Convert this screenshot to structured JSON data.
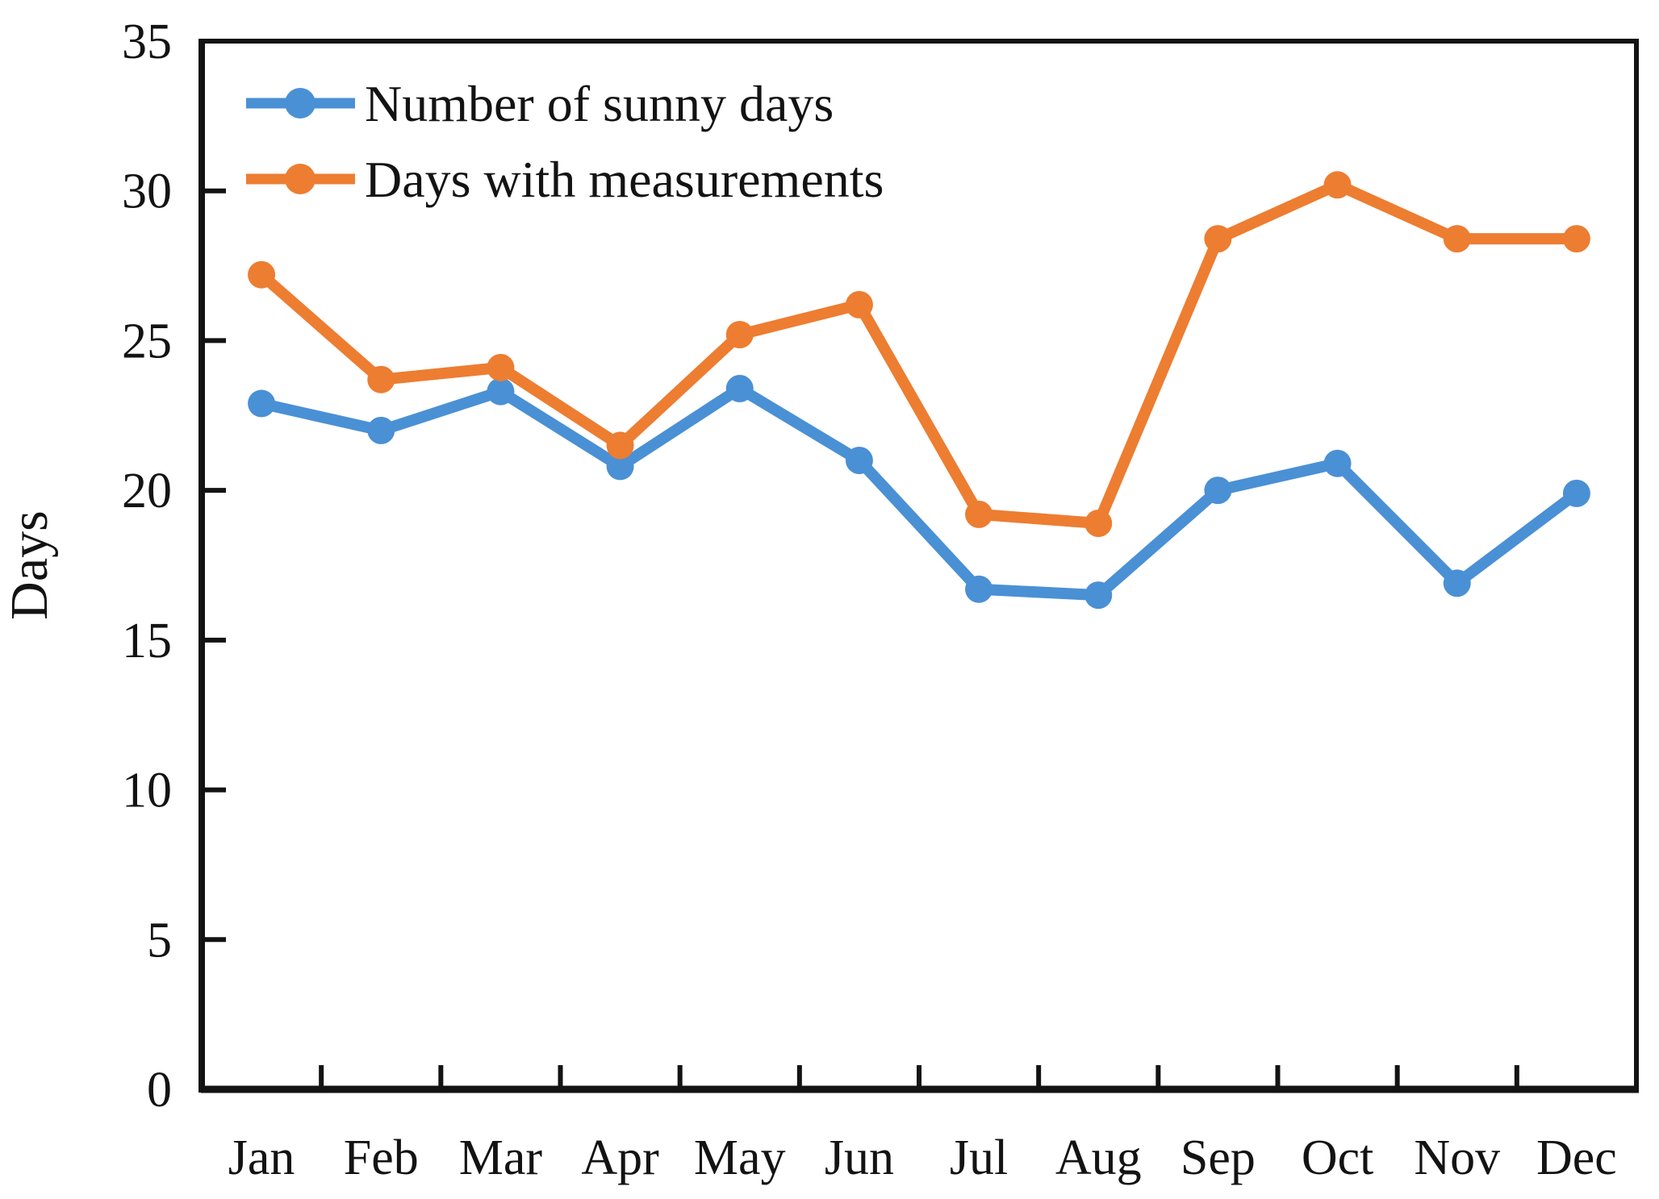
{
  "figure": {
    "background": "#ffffff",
    "axis_color": "#131313"
  },
  "chart_data": {
    "type": "line",
    "title": "",
    "xlabel": "",
    "ylabel": "Days",
    "categories": [
      "Jan",
      "Feb",
      "Mar",
      "Apr",
      "May",
      "Jun",
      "Jul",
      "Aug",
      "Sep",
      "Oct",
      "Nov",
      "Dec"
    ],
    "series": [
      {
        "name": "Number of sunny days",
        "color": "#4A90D5",
        "marker": "circle",
        "values": [
          22.9,
          22.0,
          23.3,
          20.8,
          23.4,
          21.0,
          16.7,
          16.5,
          20.0,
          20.9,
          16.9,
          19.9
        ]
      },
      {
        "name": "Days with measurements",
        "color": "#ED7D31",
        "marker": "circle",
        "values": [
          27.2,
          23.7,
          24.1,
          21.5,
          25.2,
          26.2,
          19.2,
          18.9,
          28.4,
          30.2,
          28.4,
          28.4
        ]
      }
    ],
    "ylim": [
      0,
      35
    ],
    "yticks": [
      0,
      5,
      10,
      15,
      20,
      25,
      30,
      35
    ],
    "ytick_step": 5,
    "grid": false,
    "frame": "box",
    "tick_direction": "in",
    "legend_position": "top-left"
  }
}
